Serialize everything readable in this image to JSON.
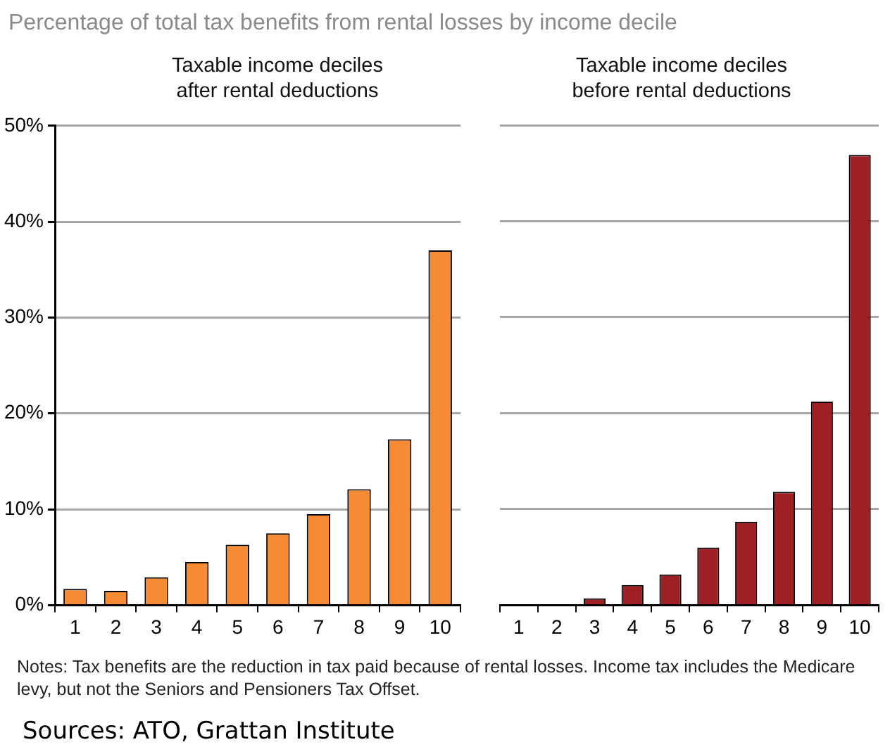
{
  "chart_data": [
    {
      "type": "bar",
      "title": "Percentage of total tax benefits from rental losses by income decile",
      "subtitle": "Taxable income deciles after rental deductions",
      "categories": [
        "1",
        "2",
        "3",
        "4",
        "5",
        "6",
        "7",
        "8",
        "9",
        "10"
      ],
      "values": [
        1.7,
        1.5,
        2.9,
        4.5,
        6.3,
        7.5,
        9.5,
        12.1,
        17.3,
        37.0
      ],
      "color": "#f68b33",
      "ylim": [
        0,
        50
      ],
      "yticks": [
        {
          "value": 0,
          "label": "0%"
        },
        {
          "value": 10,
          "label": "10%"
        },
        {
          "value": 20,
          "label": "20%"
        },
        {
          "value": 30,
          "label": "30%"
        },
        {
          "value": 40,
          "label": "40%"
        },
        {
          "value": 50,
          "label": "50%"
        }
      ],
      "grid": "y"
    },
    {
      "type": "bar",
      "subtitle": "Taxable income deciles before rental deductions",
      "categories": [
        "1",
        "2",
        "3",
        "4",
        "5",
        "6",
        "7",
        "8",
        "9",
        "10"
      ],
      "values": [
        0,
        0,
        0.7,
        2.1,
        3.2,
        6.0,
        8.7,
        11.8,
        21.2,
        46.9
      ],
      "color": "#9e1f24",
      "ylim": [
        0,
        50
      ],
      "yticks": [
        {
          "value": 0,
          "label": null
        },
        {
          "value": 10,
          "label": null
        },
        {
          "value": 20,
          "label": null
        },
        {
          "value": 30,
          "label": null
        },
        {
          "value": 40,
          "label": null
        },
        {
          "value": 50,
          "label": null
        }
      ],
      "grid": "y",
      "tick_labels": "x",
      "annotations": [
        "Notes: Tax benefits are the reduction in tax paid because of rental losses. Income tax includes the Medicare levy, but not the Seniors and Pensioners Tax Offset.",
        "Sources: ATO, Grattan Institute"
      ]
    }
  ]
}
